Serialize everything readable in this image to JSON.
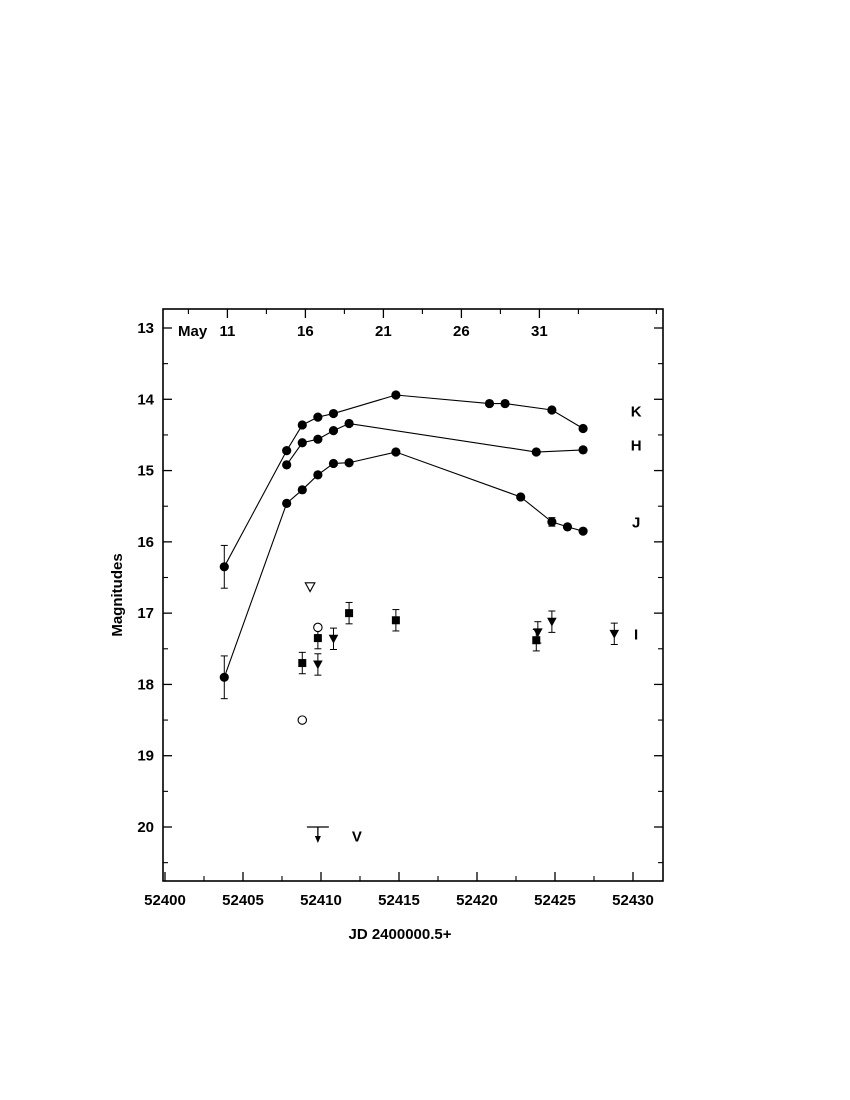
{
  "chart_data": {
    "type": "scatter",
    "xlabel": "JD 2400000.5+",
    "ylabel": "Magnitudes",
    "xlim": [
      52400,
      52432
    ],
    "ylim": [
      20.75,
      12.75
    ],
    "y_inverted": true,
    "x_ticks": [
      52400,
      52405,
      52410,
      52415,
      52420,
      52425,
      52430
    ],
    "y_ticks": [
      13,
      14,
      15,
      16,
      17,
      18,
      19,
      20
    ],
    "top_axis": {
      "label": "May",
      "ticks": [
        {
          "x": 52404,
          "label": "11"
        },
        {
          "x": 52409,
          "label": "16"
        },
        {
          "x": 52414,
          "label": "21"
        },
        {
          "x": 52419,
          "label": "26"
        },
        {
          "x": 52424,
          "label": "31"
        }
      ]
    },
    "grid": false,
    "series": [
      {
        "name": "K",
        "marker": "circle-filled",
        "connected": true,
        "label_position": {
          "x": 52430.2,
          "y": 14.17
        },
        "points": [
          {
            "x": 52403.8,
            "y": 16.35,
            "err": 0.3
          },
          {
            "x": 52407.8,
            "y": 14.72
          },
          {
            "x": 52408.8,
            "y": 14.36
          },
          {
            "x": 52409.8,
            "y": 14.25
          },
          {
            "x": 52410.8,
            "y": 14.2
          },
          {
            "x": 52414.8,
            "y": 13.94
          },
          {
            "x": 52420.8,
            "y": 14.06
          },
          {
            "x": 52421.8,
            "y": 14.06
          },
          {
            "x": 52424.8,
            "y": 14.15
          },
          {
            "x": 52426.8,
            "y": 14.41
          }
        ]
      },
      {
        "name": "H",
        "marker": "circle-filled",
        "connected": true,
        "label_position": {
          "x": 52430.2,
          "y": 14.65
        },
        "points": [
          {
            "x": 52407.8,
            "y": 14.92
          },
          {
            "x": 52408.8,
            "y": 14.61
          },
          {
            "x": 52409.8,
            "y": 14.56
          },
          {
            "x": 52410.8,
            "y": 14.44
          },
          {
            "x": 52411.8,
            "y": 14.34
          },
          {
            "x": 52423.8,
            "y": 14.74
          },
          {
            "x": 52426.8,
            "y": 14.71
          }
        ]
      },
      {
        "name": "J",
        "marker": "circle-filled",
        "connected": true,
        "label_position": {
          "x": 52430.2,
          "y": 15.73
        },
        "points": [
          {
            "x": 52403.8,
            "y": 17.9,
            "err": 0.3
          },
          {
            "x": 52407.8,
            "y": 15.46
          },
          {
            "x": 52408.8,
            "y": 15.27
          },
          {
            "x": 52409.8,
            "y": 15.06
          },
          {
            "x": 52410.8,
            "y": 14.9
          },
          {
            "x": 52411.8,
            "y": 14.89
          },
          {
            "x": 52414.8,
            "y": 14.74
          },
          {
            "x": 52422.8,
            "y": 15.37
          },
          {
            "x": 52424.8,
            "y": 15.72,
            "err": 0.06
          },
          {
            "x": 52425.8,
            "y": 15.79
          },
          {
            "x": 52426.8,
            "y": 15.85
          }
        ]
      },
      {
        "name": "I",
        "marker": "mixed",
        "connected": false,
        "label_position": {
          "x": 52430.2,
          "y": 17.3
        },
        "points": [
          {
            "x": 52408.8,
            "y": 17.7,
            "err": 0.15,
            "marker": "square-filled"
          },
          {
            "x": 52409.8,
            "y": 17.35,
            "err": 0.15,
            "marker": "square-filled"
          },
          {
            "x": 52411.8,
            "y": 17.0,
            "err": 0.15,
            "marker": "square-filled"
          },
          {
            "x": 52414.8,
            "y": 17.1,
            "err": 0.15,
            "marker": "square-filled"
          },
          {
            "x": 52423.8,
            "y": 17.38,
            "err": 0.15,
            "marker": "square-filled"
          },
          {
            "x": 52409.8,
            "y": 17.72,
            "err": 0.15,
            "marker": "triangle-down-filled"
          },
          {
            "x": 52410.8,
            "y": 17.36,
            "err": 0.15,
            "marker": "triangle-down-filled"
          },
          {
            "x": 52423.9,
            "y": 17.27,
            "err": 0.15,
            "marker": "triangle-down-filled"
          },
          {
            "x": 52424.8,
            "y": 17.12,
            "err": 0.15,
            "marker": "triangle-down-filled"
          },
          {
            "x": 52428.8,
            "y": 17.29,
            "err": 0.15,
            "marker": "triangle-down-filled"
          },
          {
            "x": 52409.3,
            "y": 16.63,
            "marker": "triangle-down-open"
          },
          {
            "x": 52409.8,
            "y": 17.2,
            "marker": "circle-open"
          },
          {
            "x": 52408.8,
            "y": 18.5,
            "marker": "circle-open"
          }
        ]
      },
      {
        "name": "V",
        "marker": "upper-limit",
        "connected": false,
        "label_position": {
          "x": 52412.3,
          "y": 20.13
        },
        "points": [
          {
            "x": 52409.8,
            "y": 20.0,
            "marker": "upper-limit"
          }
        ]
      }
    ]
  }
}
